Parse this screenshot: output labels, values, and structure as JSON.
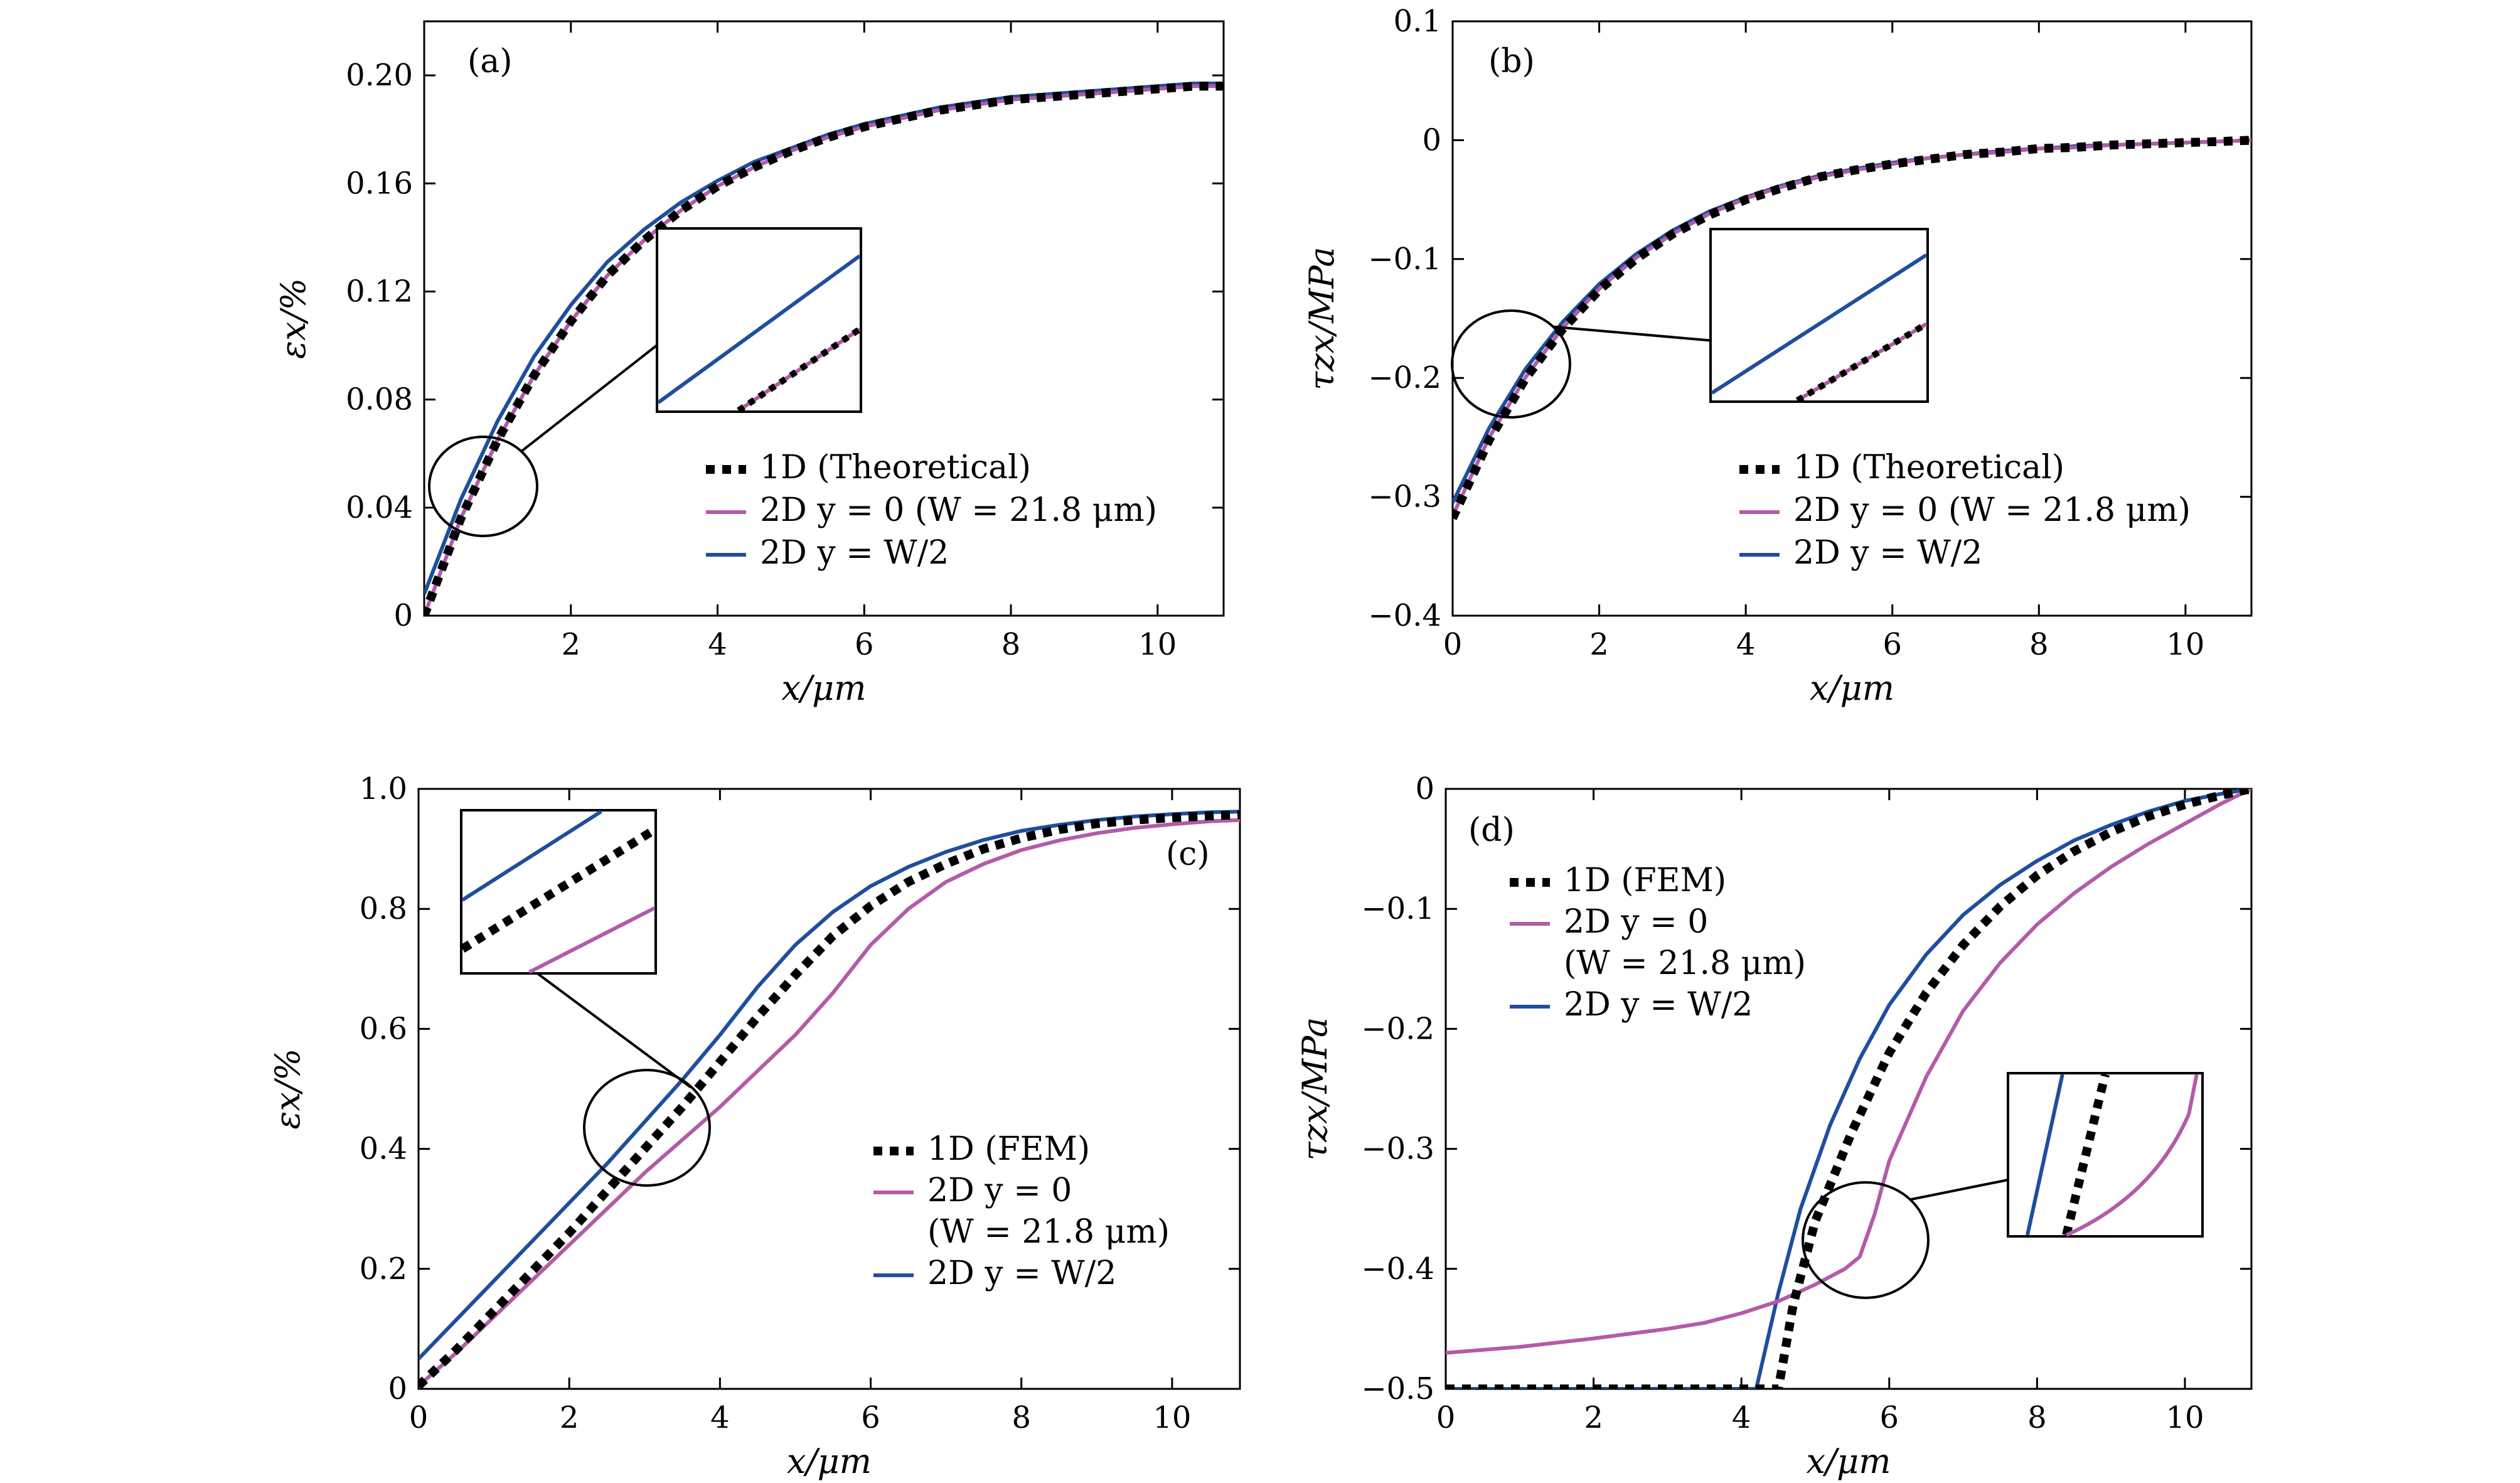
{
  "colors": {
    "theory": "#000000",
    "y0": "#b35ba8",
    "yW2": "#1f4e9e"
  },
  "chart_data": [
    {
      "type": "line",
      "panel": "(a)",
      "xlabel": "x/μm",
      "ylabel": "εx/%",
      "xlim": [
        0,
        10.9
      ],
      "ylim": [
        0,
        0.22
      ],
      "xticks": [
        2,
        4,
        6,
        8,
        10
      ],
      "xticklabels": [
        "2",
        "4",
        "6",
        "8",
        "10"
      ],
      "yticks": [
        0,
        0.04,
        0.08,
        0.12,
        0.16,
        0.2
      ],
      "yticklabels": [
        "0",
        "0.04",
        "0.08",
        "0.12",
        "0.16",
        "0.20"
      ],
      "legend_position": "lower-right",
      "legend": [
        {
          "label": "1D (Theoretical)",
          "series": 0
        },
        {
          "label": "2D y = 0 (W = 21.8 μm)",
          "series": 1
        },
        {
          "label": "2D y = W/2",
          "series": 2
        }
      ],
      "inset_note": "magnified view",
      "series": [
        {
          "name": "1D (Theoretical)",
          "style": "dotted",
          "color_key": "theory",
          "x": [
            0,
            0.5,
            1,
            1.5,
            2,
            2.5,
            3,
            3.5,
            4,
            4.5,
            5,
            5.5,
            6,
            6.5,
            7,
            7.5,
            8,
            8.5,
            9,
            9.5,
            10,
            10.5,
            10.9
          ],
          "y": [
            0,
            0.036,
            0.065,
            0.089,
            0.109,
            0.126,
            0.139,
            0.15,
            0.159,
            0.166,
            0.172,
            0.177,
            0.181,
            0.184,
            0.187,
            0.189,
            0.191,
            0.192,
            0.193,
            0.194,
            0.195,
            0.196,
            0.196
          ]
        },
        {
          "name": "2D y = 0 (W = 21.8 μm)",
          "style": "solid",
          "color_key": "y0",
          "x": [
            0,
            0.5,
            1,
            1.5,
            2,
            2.5,
            3,
            3.5,
            4,
            4.5,
            5,
            5.5,
            6,
            6.5,
            7,
            7.5,
            8,
            8.5,
            9,
            9.5,
            10,
            10.5,
            10.9
          ],
          "y": [
            0,
            0.036,
            0.065,
            0.089,
            0.109,
            0.126,
            0.139,
            0.15,
            0.159,
            0.166,
            0.172,
            0.177,
            0.181,
            0.184,
            0.187,
            0.189,
            0.191,
            0.192,
            0.193,
            0.194,
            0.195,
            0.196,
            0.196
          ]
        },
        {
          "name": "2D y = W/2",
          "style": "solid",
          "color_key": "yW2",
          "x": [
            0,
            0.5,
            1,
            1.5,
            2,
            2.5,
            3,
            3.5,
            4,
            4.5,
            5,
            5.5,
            6,
            6.5,
            7,
            7.5,
            8,
            8.5,
            9,
            9.5,
            10,
            10.5,
            10.9
          ],
          "y": [
            0.008,
            0.043,
            0.072,
            0.096,
            0.115,
            0.131,
            0.143,
            0.153,
            0.161,
            0.168,
            0.173,
            0.178,
            0.182,
            0.185,
            0.188,
            0.19,
            0.192,
            0.193,
            0.194,
            0.195,
            0.196,
            0.197,
            0.197
          ]
        }
      ]
    },
    {
      "type": "line",
      "panel": "(b)",
      "xlabel": "x/μm",
      "ylabel": "τzx/MPa",
      "xlim": [
        0,
        10.9
      ],
      "ylim": [
        -0.4,
        0.1
      ],
      "xticks": [
        0,
        2,
        4,
        6,
        8,
        10
      ],
      "xticklabels": [
        "0",
        "2",
        "4",
        "6",
        "8",
        "10"
      ],
      "yticks": [
        -0.4,
        -0.3,
        -0.2,
        -0.1,
        0,
        0.1
      ],
      "yticklabels": [
        "−0.4",
        "−0.3",
        "−0.2",
        "−0.1",
        "0",
        "0.1"
      ],
      "legend_position": "lower-right",
      "legend": [
        {
          "label": "1D (Theoretical)",
          "series": 0
        },
        {
          "label": "2D y = 0 (W = 21.8 μm)",
          "series": 1
        },
        {
          "label": "2D y = W/2",
          "series": 2
        }
      ],
      "series": [
        {
          "name": "1D (Theoretical)",
          "style": "dotted",
          "color_key": "theory",
          "x": [
            0,
            0.5,
            1,
            1.5,
            2,
            2.5,
            3,
            3.5,
            4,
            4.5,
            5,
            5.5,
            6,
            6.5,
            7,
            7.5,
            8,
            8.5,
            9,
            9.5,
            10,
            10.5,
            10.9
          ],
          "y": [
            -0.318,
            -0.252,
            -0.2,
            -0.159,
            -0.126,
            -0.1,
            -0.079,
            -0.063,
            -0.05,
            -0.04,
            -0.031,
            -0.025,
            -0.02,
            -0.016,
            -0.012,
            -0.01,
            -0.007,
            -0.006,
            -0.004,
            -0.003,
            -0.002,
            -0.001,
            0
          ]
        },
        {
          "name": "2D y = 0 (W = 21.8 μm)",
          "style": "solid",
          "color_key": "y0",
          "x": [
            0,
            0.5,
            1,
            1.5,
            2,
            2.5,
            3,
            3.5,
            4,
            4.5,
            5,
            5.5,
            6,
            6.5,
            7,
            7.5,
            8,
            8.5,
            9,
            9.5,
            10,
            10.5,
            10.9
          ],
          "y": [
            -0.316,
            -0.25,
            -0.199,
            -0.158,
            -0.125,
            -0.099,
            -0.079,
            -0.062,
            -0.049,
            -0.039,
            -0.031,
            -0.025,
            -0.02,
            -0.015,
            -0.012,
            -0.01,
            -0.007,
            -0.006,
            -0.004,
            -0.003,
            -0.002,
            -0.001,
            0
          ]
        },
        {
          "name": "2D y = W/2",
          "style": "solid",
          "color_key": "yW2",
          "x": [
            0,
            0.5,
            1,
            1.5,
            2,
            2.5,
            3,
            3.5,
            4,
            4.5,
            5,
            5.5,
            6,
            6.5,
            7,
            7.5,
            8,
            8.5,
            9,
            9.5,
            10,
            10.5,
            10.9
          ],
          "y": [
            -0.305,
            -0.242,
            -0.192,
            -0.153,
            -0.121,
            -0.096,
            -0.076,
            -0.06,
            -0.048,
            -0.038,
            -0.03,
            -0.024,
            -0.019,
            -0.015,
            -0.012,
            -0.009,
            -0.007,
            -0.005,
            -0.004,
            -0.003,
            -0.002,
            -0.001,
            0
          ]
        }
      ]
    },
    {
      "type": "line",
      "panel": "(c)",
      "xlabel": "x/μm",
      "ylabel": "εx/%",
      "xlim": [
        0,
        10.9
      ],
      "ylim": [
        0,
        1.0
      ],
      "xticks": [
        0,
        2,
        4,
        6,
        8,
        10
      ],
      "xticklabels": [
        "0",
        "2",
        "4",
        "6",
        "8",
        "10"
      ],
      "yticks": [
        0,
        0.2,
        0.4,
        0.6,
        0.8,
        1.0
      ],
      "yticklabels": [
        "0",
        "0.2",
        "0.4",
        "0.6",
        "0.8",
        "1.0"
      ],
      "legend_position": "lower-right",
      "legend": [
        {
          "label": "1D (FEM)",
          "series": 0
        },
        {
          "label": "2D y = 0",
          "series": 1
        },
        {
          "label": "(W = 21.8 μm)",
          "series": null
        },
        {
          "label": "2D y = W/2",
          "series": 2
        }
      ],
      "series": [
        {
          "name": "1D (FEM)",
          "style": "dotted",
          "color_key": "theory",
          "x": [
            0,
            0.5,
            1,
            1.5,
            2,
            2.5,
            3,
            3.5,
            4,
            4.5,
            5,
            5.5,
            6,
            6.5,
            7,
            7.5,
            8,
            8.5,
            9,
            9.5,
            10,
            10.5,
            10.9
          ],
          "y": [
            0.005,
            0.065,
            0.13,
            0.195,
            0.26,
            0.33,
            0.4,
            0.47,
            0.545,
            0.62,
            0.69,
            0.755,
            0.805,
            0.845,
            0.875,
            0.9,
            0.918,
            0.932,
            0.942,
            0.948,
            0.952,
            0.955,
            0.957
          ]
        },
        {
          "name": "2D y = 0",
          "style": "solid",
          "color_key": "y0",
          "x": [
            0,
            0.5,
            1,
            1.5,
            2,
            2.5,
            3,
            3.5,
            4,
            4.5,
            5,
            5.5,
            6,
            6.5,
            7,
            7.5,
            8,
            8.5,
            9,
            9.5,
            10,
            10.5,
            10.9
          ],
          "y": [
            0.005,
            0.06,
            0.12,
            0.18,
            0.24,
            0.3,
            0.36,
            0.415,
            0.47,
            0.53,
            0.59,
            0.66,
            0.74,
            0.8,
            0.845,
            0.875,
            0.898,
            0.914,
            0.926,
            0.935,
            0.941,
            0.946,
            0.948
          ]
        },
        {
          "name": "2D y = W/2",
          "style": "solid",
          "color_key": "yW2",
          "x": [
            0,
            0.5,
            1,
            1.5,
            2,
            2.5,
            3,
            3.5,
            4,
            4.5,
            5,
            5.5,
            6,
            6.5,
            7,
            7.5,
            8,
            8.5,
            9,
            9.5,
            10,
            10.5,
            10.9
          ],
          "y": [
            0.05,
            0.115,
            0.18,
            0.245,
            0.31,
            0.375,
            0.445,
            0.515,
            0.59,
            0.67,
            0.74,
            0.795,
            0.838,
            0.87,
            0.895,
            0.915,
            0.93,
            0.94,
            0.948,
            0.954,
            0.958,
            0.961,
            0.962
          ]
        }
      ]
    },
    {
      "type": "line",
      "panel": "(d)",
      "xlabel": "x/μm",
      "ylabel": "τzx/MPa",
      "xlim": [
        0,
        10.9
      ],
      "ylim": [
        -0.5,
        0
      ],
      "xticks": [
        0,
        2,
        4,
        6,
        8,
        10
      ],
      "xticklabels": [
        "0",
        "2",
        "4",
        "6",
        "8",
        "10"
      ],
      "yticks": [
        -0.5,
        -0.4,
        -0.3,
        -0.2,
        -0.1,
        0
      ],
      "yticklabels": [
        "−0.5",
        "−0.4",
        "−0.3",
        "−0.2",
        "−0.1",
        "0"
      ],
      "legend_position": "upper-left",
      "legend": [
        {
          "label": "1D (FEM)",
          "series": 0
        },
        {
          "label": "2D y = 0",
          "series": 1
        },
        {
          "label": "(W = 21.8 μm)",
          "series": null
        },
        {
          "label": "2D y = W/2",
          "series": 2
        }
      ],
      "series": [
        {
          "name": "1D (FEM)",
          "style": "dotted",
          "color_key": "theory",
          "x": [
            0,
            4.5,
            4.7,
            5.0,
            5.5,
            6.0,
            6.5,
            7.0,
            7.5,
            8.0,
            8.5,
            9.0,
            9.5,
            10.0,
            10.5,
            10.9
          ],
          "y": [
            -0.5,
            -0.5,
            -0.43,
            -0.36,
            -0.285,
            -0.22,
            -0.17,
            -0.13,
            -0.098,
            -0.072,
            -0.052,
            -0.036,
            -0.023,
            -0.013,
            -0.005,
            0
          ]
        },
        {
          "name": "2D y = 0",
          "style": "solid",
          "color_key": "y0",
          "x": [
            0,
            1,
            2,
            3,
            3.5,
            4,
            4.5,
            5,
            5.4,
            5.6,
            5.8,
            6.0,
            6.5,
            7.0,
            7.5,
            8.0,
            8.5,
            9.0,
            9.5,
            10.0,
            10.5,
            10.9
          ],
          "y": [
            -0.47,
            -0.465,
            -0.458,
            -0.45,
            -0.445,
            -0.437,
            -0.427,
            -0.413,
            -0.4,
            -0.39,
            -0.355,
            -0.31,
            -0.24,
            -0.185,
            -0.145,
            -0.113,
            -0.087,
            -0.065,
            -0.046,
            -0.029,
            -0.012,
            0
          ]
        },
        {
          "name": "2D y = W/2",
          "style": "solid",
          "color_key": "yW2",
          "x": [
            0,
            4.2,
            4.5,
            4.8,
            5.2,
            5.6,
            6.0,
            6.5,
            7.0,
            7.5,
            8.0,
            8.5,
            9.0,
            9.5,
            10.0,
            10.5,
            10.9
          ],
          "y": [
            -0.5,
            -0.5,
            -0.42,
            -0.35,
            -0.28,
            -0.225,
            -0.18,
            -0.138,
            -0.105,
            -0.08,
            -0.06,
            -0.043,
            -0.03,
            -0.019,
            -0.01,
            -0.004,
            0
          ]
        }
      ]
    }
  ]
}
